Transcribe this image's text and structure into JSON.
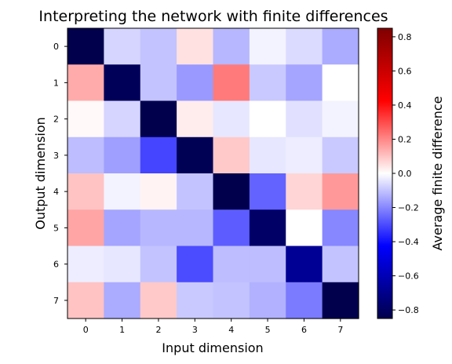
{
  "chart_data": {
    "type": "heatmap",
    "title": "Interpreting the network with finite differences",
    "xlabel": "Input dimension",
    "ylabel": "Output dimension",
    "x_ticks": [
      "0",
      "1",
      "2",
      "3",
      "4",
      "5",
      "6",
      "7"
    ],
    "y_ticks": [
      "0",
      "1",
      "2",
      "3",
      "4",
      "5",
      "6",
      "7"
    ],
    "colormap": "seismic",
    "colorbar": {
      "label": "Average finite difference",
      "vmin": -0.85,
      "vmax": 0.85,
      "ticks": [
        "−0.8",
        "−0.6",
        "−0.4",
        "−0.2",
        "0.0",
        "0.2",
        "0.4",
        "0.6",
        "0.8"
      ],
      "tick_values": [
        -0.8,
        -0.6,
        -0.4,
        -0.2,
        0.0,
        0.2,
        0.4,
        0.6,
        0.8
      ]
    },
    "values": [
      [
        -0.85,
        -0.07,
        -0.1,
        0.05,
        -0.12,
        -0.02,
        -0.06,
        -0.14
      ],
      [
        0.14,
        -0.82,
        -0.1,
        -0.17,
        0.22,
        -0.09,
        -0.15,
        0.0
      ],
      [
        0.01,
        -0.07,
        -0.85,
        0.03,
        -0.04,
        0.0,
        -0.05,
        -0.02
      ],
      [
        -0.11,
        -0.16,
        -0.31,
        -0.83,
        0.09,
        -0.04,
        -0.03,
        -0.09
      ],
      [
        0.1,
        -0.02,
        0.02,
        -0.1,
        -0.86,
        -0.26,
        0.07,
        0.17
      ],
      [
        0.15,
        -0.15,
        -0.12,
        -0.12,
        -0.27,
        -0.79,
        0.0,
        -0.2
      ],
      [
        -0.03,
        -0.04,
        -0.1,
        -0.3,
        -0.11,
        -0.11,
        -0.68,
        -0.1
      ],
      [
        0.1,
        -0.14,
        0.09,
        -0.09,
        -0.1,
        -0.13,
        -0.22,
        -0.86
      ]
    ]
  }
}
